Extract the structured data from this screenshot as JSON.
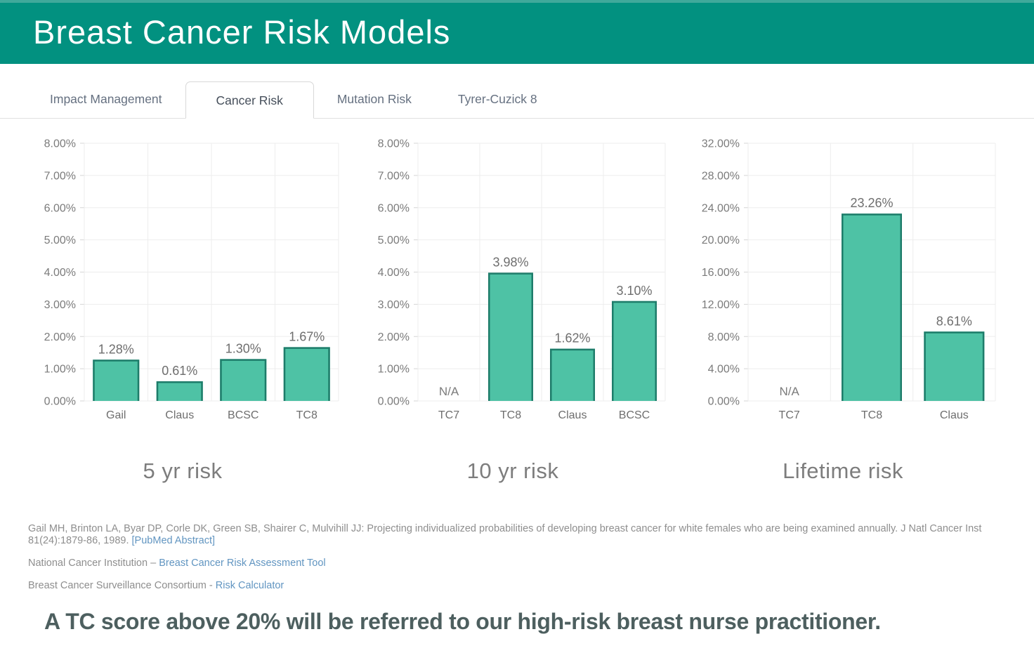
{
  "header": {
    "title": "Breast Cancer Risk Models",
    "background": "#029180"
  },
  "tabs": [
    {
      "label": "Impact Management",
      "active": false
    },
    {
      "label": "Cancer Risk",
      "active": true
    },
    {
      "label": "Mutation Risk",
      "active": false
    },
    {
      "label": "Tyrer-Cuzick 8",
      "active": false
    }
  ],
  "chart_data": [
    {
      "type": "bar",
      "title": "5 yr risk",
      "categories": [
        "Gail",
        "Claus",
        "BCSC",
        "TC8"
      ],
      "values": [
        1.28,
        0.61,
        1.3,
        1.67
      ],
      "labels": [
        "1.28%",
        "0.61%",
        "1.30%",
        "1.67%"
      ],
      "ylim": [
        0,
        8
      ],
      "ytick_step": 1,
      "ytick_format": "percent_2dp",
      "grid": true,
      "legend": "none"
    },
    {
      "type": "bar",
      "title": "10 yr risk",
      "categories": [
        "TC7",
        "TC8",
        "Claus",
        "BCSC"
      ],
      "values": [
        null,
        3.98,
        1.62,
        3.1
      ],
      "labels": [
        "N/A",
        "3.98%",
        "1.62%",
        "3.10%"
      ],
      "ylim": [
        0,
        8
      ],
      "ytick_step": 1,
      "ytick_format": "percent_2dp",
      "grid": true,
      "legend": "none"
    },
    {
      "type": "bar",
      "title": "Lifetime risk",
      "categories": [
        "TC7",
        "TC8",
        "Claus"
      ],
      "values": [
        null,
        23.26,
        8.61
      ],
      "labels": [
        "N/A",
        "23.26%",
        "8.61%"
      ],
      "ylim": [
        0,
        32
      ],
      "ytick_step": 4,
      "ytick_format": "percent_2dp",
      "grid": true,
      "legend": "none"
    }
  ],
  "citations": [
    {
      "text": "Gail MH, Brinton LA, Byar DP, Corle DK, Green SB, Shairer C, Mulvihill JJ: Projecting individualized probabilities of developing breast cancer for white females who are being examined annually. J Natl Cancer Inst 81(24):1879-86, 1989. ",
      "link": "[PubMed Abstract]"
    },
    {
      "text": "National Cancer Institution – ",
      "link": "Breast Cancer Risk Assessment Tool"
    },
    {
      "text": "Breast Cancer Surveillance Consortium - ",
      "link": "Risk Calculator"
    }
  ],
  "statement": {
    "text": "A TC score above 20% will be referred to our high-risk breast nurse practitioner."
  },
  "colors": {
    "header_bg": "#029180",
    "bar_fill": "#4ec2a5",
    "bar_border": "#1e7c6a",
    "gridline": "#ededed",
    "axis_tick": "#d4d4d4",
    "tick_label": "#7b7b7b",
    "value_label": "#6e6e6e",
    "citation_text": "#8e8e8e",
    "link": "#6195c1",
    "statement_text": "#4d5f5f"
  }
}
